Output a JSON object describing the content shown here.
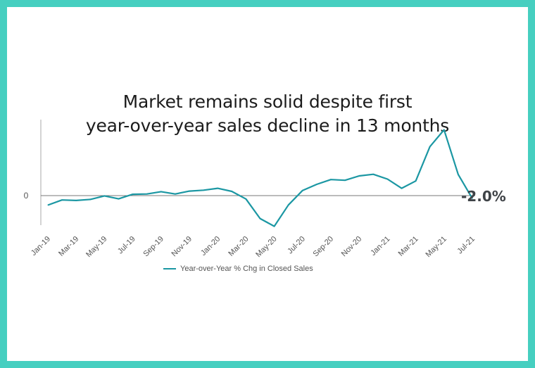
{
  "chart_data": {
    "type": "line",
    "title": "Market remains solid despite first year-over-year sales decline in 13 months",
    "title_lines": [
      "Market remains solid despite first",
      "year-over-year sales decline in 13 months"
    ],
    "x": [
      "Jan-19",
      "Feb-19",
      "Mar-19",
      "Apr-19",
      "May-19",
      "Jun-19",
      "Jul-19",
      "Aug-19",
      "Sep-19",
      "Oct-19",
      "Nov-19",
      "Dec-19",
      "Jan-20",
      "Feb-20",
      "Mar-20",
      "Apr-20",
      "May-20",
      "Jun-20",
      "Jul-20",
      "Aug-20",
      "Sep-20",
      "Oct-20",
      "Nov-20",
      "Dec-20",
      "Jan-21",
      "Feb-21",
      "Mar-21",
      "Apr-21",
      "May-21",
      "Jun-21",
      "Jul-21"
    ],
    "x_tick_labels": [
      "Jan-19",
      "Mar-19",
      "May-19",
      "Jul-19",
      "Sep-19",
      "Nov-19",
      "Jan-20",
      "Mar-20",
      "May-20",
      "Jul-20",
      "Sep-20",
      "Nov-20",
      "Jan-21",
      "Mar-21",
      "May-21",
      "Jul-21"
    ],
    "y_tick_labels": [
      "0"
    ],
    "series": [
      {
        "name": "Year-over-Year % Chg in Closed Sales",
        "color": "#1b97a3",
        "values": [
          -6.5,
          -3.0,
          -3.3,
          -2.6,
          -0.2,
          -2.2,
          0.9,
          1.1,
          2.7,
          1.1,
          3.1,
          3.7,
          5.0,
          2.9,
          -2.3,
          -15.7,
          -21.0,
          -6.4,
          3.5,
          7.7,
          11.0,
          10.5,
          13.5,
          14.6,
          11.3,
          5.0,
          10.0,
          33.5,
          45.0,
          14.5,
          -2.0
        ]
      }
    ],
    "ylim": [
      -26,
      52
    ],
    "end_label": "-2.0%",
    "legend_position": "bottom"
  }
}
